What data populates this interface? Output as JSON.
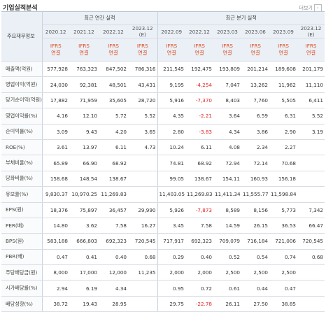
{
  "title": "기업실적분석",
  "more_label": "더보기",
  "header": {
    "row_label": "주요재무정보",
    "annual_group": "최근 연간 실적",
    "quarter_group": "최근 분기 실적",
    "annual_periods": [
      "2020.12",
      "2021.12",
      "2022.12",
      "2023.12\n(E)"
    ],
    "quarter_periods": [
      "2022.09",
      "2022.12",
      "2023.03",
      "2023.06",
      "2023.09",
      "2023.12\n(E)"
    ],
    "basis": "IFRS\n연결"
  },
  "rows": [
    {
      "label": "매출액(억원)",
      "annual": [
        "577,928",
        "763,323",
        "847,502",
        "786,316"
      ],
      "quarter": [
        "211,545",
        "192,475",
        "193,809",
        "201,214",
        "189,608",
        "201,179"
      ]
    },
    {
      "label": "영업이익(억원)",
      "annual": [
        "24,030",
        "92,381",
        "48,501",
        "43,431"
      ],
      "quarter": [
        "9,195",
        "-4,254",
        "7,047",
        "13,262",
        "11,962",
        "11,110"
      ]
    },
    {
      "label": "당기순이익(억원)",
      "annual": [
        "17,882",
        "71,959",
        "35,605",
        "28,720"
      ],
      "quarter": [
        "5,916",
        "-7,370",
        "8,403",
        "7,760",
        "5,505",
        "6,411"
      ]
    },
    {
      "label": "영업이익률(%)",
      "annual": [
        "4.16",
        "12.10",
        "5.72",
        "5.52"
      ],
      "quarter": [
        "4.35",
        "-2.21",
        "3.64",
        "6.59",
        "6.31",
        "5.52"
      ]
    },
    {
      "label": "순이익률(%)",
      "annual": [
        "3.09",
        "9.43",
        "4.20",
        "3.65"
      ],
      "quarter": [
        "2.80",
        "-3.83",
        "4.34",
        "3.86",
        "2.90",
        "3.19"
      ]
    },
    {
      "label": "ROE(%)",
      "annual": [
        "3.61",
        "13.97",
        "6.11",
        "4.73"
      ],
      "quarter": [
        "10.24",
        "6.11",
        "4.08",
        "2.34",
        "2.27",
        ""
      ]
    },
    {
      "label": "부채비율(%)",
      "annual": [
        "65.89",
        "66.90",
        "68.92",
        ""
      ],
      "quarter": [
        "74.81",
        "68.92",
        "72.94",
        "72.14",
        "70.68",
        ""
      ]
    },
    {
      "label": "당좌비율(%)",
      "annual": [
        "158.68",
        "148.54",
        "138.67",
        ""
      ],
      "quarter": [
        "99.05",
        "138.67",
        "154.11",
        "160.93",
        "156.18",
        ""
      ]
    },
    {
      "label": "유보율(%)",
      "annual": [
        "9,830.37",
        "10,970.25",
        "11,269.83",
        ""
      ],
      "quarter": [
        "11,403.05",
        "11,269.83",
        "11,411.34",
        "11,555.77",
        "11,598.84",
        ""
      ]
    },
    {
      "label": "EPS(원)",
      "annual": [
        "18,376",
        "75,897",
        "36,457",
        "29,990"
      ],
      "quarter": [
        "5,926",
        "-7,873",
        "8,589",
        "8,156",
        "5,773",
        "7,342"
      ]
    },
    {
      "label": "PER(배)",
      "annual": [
        "14.80",
        "3.62",
        "7.58",
        "16.27"
      ],
      "quarter": [
        "3.45",
        "7.58",
        "14.59",
        "26.15",
        "36.53",
        "66.47"
      ]
    },
    {
      "label": "BPS(원)",
      "annual": [
        "583,188",
        "666,803",
        "692,323",
        "720,545"
      ],
      "quarter": [
        "717,917",
        "692,323",
        "709,079",
        "716,184",
        "721,006",
        "720,545"
      ]
    },
    {
      "label": "PBR(배)",
      "annual": [
        "0.47",
        "0.41",
        "0.40",
        "0.68"
      ],
      "quarter": [
        "0.29",
        "0.40",
        "0.52",
        "0.54",
        "0.74",
        "0.68"
      ]
    },
    {
      "label": "주당배당금(원)",
      "annual": [
        "8,000",
        "17,000",
        "12,000",
        "11,235"
      ],
      "quarter": [
        "2,000",
        "2,000",
        "2,500",
        "2,500",
        "2,500",
        ""
      ]
    },
    {
      "label": "시가배당률(%)",
      "annual": [
        "2.94",
        "6.19",
        "4.34",
        ""
      ],
      "quarter": [
        "0.95",
        "0.72",
        "0.61",
        "0.44",
        "0.47",
        ""
      ]
    },
    {
      "label": "배당성향(%)",
      "annual": [
        "38.72",
        "19.43",
        "28.95",
        ""
      ],
      "quarter": [
        "29.75",
        "-22.78",
        "26.11",
        "27.50",
        "38.85",
        ""
      ]
    }
  ],
  "colors": {
    "ifrs_text": "#e04a1f",
    "negative": "#e02020",
    "header_bg": "#eaf0f6"
  }
}
